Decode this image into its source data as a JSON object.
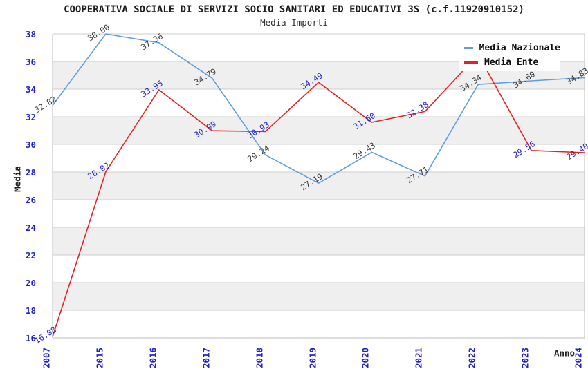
{
  "window": {
    "title": "Media Importi"
  },
  "colors": {
    "background": "#ffffff",
    "band": "#efefef",
    "grid": "#cccccc",
    "frame": "#bbbbbb",
    "tick_text": "#2222cc",
    "title_text": "#1c1c1c",
    "nazionale_line": "#5f9ee0",
    "ente_line": "#e62121",
    "nazionale_label_text": "#3a3a3a",
    "ente_label_text": "#2525cf"
  },
  "chart_data": {
    "type": "line",
    "title": "COOPERATIVA SOCIALE DI SERVIZI SOCIO SANITARI ED EDUCATIVI 3S (c.f.11920910152)",
    "subtitle": "Media Importi",
    "xlabel": "Anno",
    "ylabel": "Media",
    "x": [
      "2007",
      "2015",
      "2016",
      "2017",
      "2018",
      "2019",
      "2020",
      "2021",
      "2022",
      "2023",
      "2024"
    ],
    "ylim": [
      16,
      38
    ],
    "ytick_step": 2,
    "yticks": [
      16,
      18,
      20,
      22,
      24,
      26,
      28,
      30,
      32,
      34,
      36,
      38
    ],
    "grid": true,
    "banded_background": true,
    "legend_position": "top-right",
    "series": [
      {
        "name": "Media Nazionale",
        "color": "#5f9ee0",
        "label_color": "#3a3a3a",
        "values": [
          32.82,
          38.0,
          37.36,
          34.79,
          29.24,
          27.19,
          29.43,
          27.71,
          34.34,
          34.6,
          34.83
        ],
        "labels": [
          "32.82",
          "38.00",
          "37.36",
          "34.79",
          "29.24",
          "27.19",
          "29.43",
          "27.71",
          "34.34",
          "34.60",
          "34.83"
        ]
      },
      {
        "name": "Media Ente",
        "color": "#e62121",
        "label_color": "#2525cf",
        "values": [
          16.08,
          28.02,
          33.95,
          30.99,
          30.93,
          34.49,
          31.6,
          32.38,
          36.5,
          29.56,
          29.4
        ],
        "labels": [
          "16.08",
          "28.02",
          "33.95",
          "30.99",
          "30.93",
          "34.49",
          "31.60",
          "32.38",
          "",
          "29.56",
          "29.40"
        ]
      }
    ]
  }
}
